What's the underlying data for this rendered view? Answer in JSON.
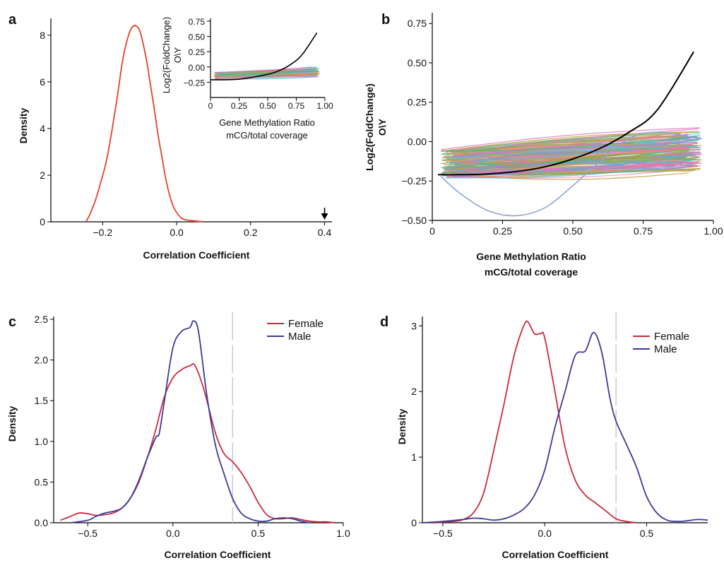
{
  "panels": {
    "a": {
      "letter": "a",
      "xlabel": "Correlation Coefficient",
      "ylabel": "Density",
      "inset_ylabel_line1": "Log2(FoldChange)",
      "inset_ylabel_line2": "O\\Y",
      "inset_xlabel_line1": "Gene Methylation Ratio",
      "inset_xlabel_line2": "mCG/total coverage"
    },
    "b": {
      "letter": "b",
      "xlabel_line1": "Gene Methylation Ratio",
      "xlabel_line2": "mCG/total coverage",
      "ylabel_line1": "Log2(FoldChange)",
      "ylabel_line2": "O\\Y"
    },
    "c": {
      "letter": "c",
      "xlabel": "Correlation Coefficient",
      "ylabel": "Density"
    },
    "d": {
      "letter": "d",
      "xlabel": "Correlation Coefficient",
      "ylabel": "Density"
    }
  },
  "chart_data": [
    {
      "panel": "a",
      "type": "line",
      "xlabel": "Correlation Coefficient",
      "ylabel": "Density",
      "xlim": [
        -0.34,
        0.42
      ],
      "ylim": [
        0,
        8.6
      ],
      "xticks": [
        -0.2,
        0.0,
        0.2,
        0.4
      ],
      "xtick_labels": [
        "−0.2",
        "0.0",
        "0.2",
        "0.4"
      ],
      "yticks": [
        0,
        2,
        4,
        6,
        8
      ],
      "ytick_labels": [
        "0",
        "2",
        "4",
        "6",
        "8"
      ],
      "color": "#e0432a",
      "arrow_at_x": 0.4,
      "series": [
        {
          "x": [
            -0.245,
            -0.235,
            -0.22,
            -0.205,
            -0.19,
            -0.175,
            -0.16,
            -0.145,
            -0.13,
            -0.12,
            -0.11,
            -0.1,
            -0.09,
            -0.08,
            -0.07,
            -0.06,
            -0.05,
            -0.04,
            -0.03,
            -0.02,
            -0.01,
            0.0,
            0.01,
            0.02,
            0.04,
            0.06,
            0.07
          ],
          "y": [
            0,
            0.3,
            0.9,
            1.7,
            2.6,
            3.9,
            5.4,
            7.0,
            8.0,
            8.35,
            8.4,
            8.2,
            7.6,
            6.8,
            5.8,
            4.8,
            3.7,
            2.8,
            1.9,
            1.2,
            0.7,
            0.4,
            0.2,
            0.1,
            0.05,
            0.02,
            0
          ]
        }
      ],
      "inset": {
        "type": "line",
        "xlim": [
          0,
          1.0
        ],
        "ylim": [
          -0.5,
          0.75
        ],
        "xticks": [
          0,
          0.25,
          0.5,
          0.75,
          1.0
        ],
        "xtick_labels": [
          "0",
          "0.25",
          "0.50",
          "0.75",
          "1.00"
        ],
        "yticks": [
          -0.25,
          0,
          0.25,
          0.5,
          0.75
        ],
        "ytick_labels": [
          "−0.25",
          "0.00",
          "0.25",
          "0.50",
          "0.75"
        ],
        "fit_curve": {
          "x": [
            0,
            0.25,
            0.5,
            0.6,
            0.7,
            0.8,
            0.93
          ],
          "y": [
            -0.21,
            -0.2,
            -0.12,
            -0.06,
            0.04,
            0.2,
            0.56
          ]
        }
      }
    },
    {
      "panel": "b",
      "type": "line",
      "xlabel": "Gene Methylation Ratio mCG/total coverage",
      "ylabel": "Log2(FoldChange) O\\Y",
      "xlim": [
        0,
        1.0
      ],
      "ylim": [
        -0.5,
        0.8
      ],
      "xticks": [
        0,
        0.25,
        0.5,
        0.75,
        1.0
      ],
      "xtick_labels": [
        "0",
        "0.25",
        "0.50",
        "0.75",
        "1.00"
      ],
      "yticks": [
        -0.5,
        -0.25,
        0,
        0.25,
        0.5,
        0.75
      ],
      "ytick_labels": [
        "−0.50",
        "−0.25",
        "0.00",
        "0.25",
        "0.50",
        "0.75"
      ],
      "fit_curve": {
        "color": "#000000",
        "x": [
          0.02,
          0.1,
          0.2,
          0.3,
          0.4,
          0.5,
          0.6,
          0.7,
          0.8,
          0.93
        ],
        "y": [
          -0.21,
          -0.21,
          -0.205,
          -0.19,
          -0.16,
          -0.11,
          -0.04,
          0.06,
          0.2,
          0.57
        ]
      },
      "outlier_curve": {
        "color": "#8fa4d8",
        "x": [
          0.03,
          0.1,
          0.2,
          0.3,
          0.4,
          0.5,
          0.6,
          0.7,
          0.8,
          0.95
        ],
        "y": [
          -0.22,
          -0.33,
          -0.44,
          -0.47,
          -0.42,
          -0.28,
          -0.12,
          0.02,
          0.06,
          0.02
        ]
      },
      "bundle_colors": [
        "#f56fae",
        "#f88cbe",
        "#3fc8c8",
        "#7db04a",
        "#9b8fe0",
        "#e8a050",
        "#c89a3a",
        "#5cb85c",
        "#e06db8",
        "#55b0e0"
      ]
    },
    {
      "panel": "c",
      "type": "line",
      "xlabel": "Correlation Coefficient",
      "ylabel": "Density",
      "xlim": [
        -0.7,
        1.0
      ],
      "ylim": [
        0,
        2.5
      ],
      "xticks": [
        -0.5,
        0.0,
        0.5,
        1.0
      ],
      "xtick_labels": [
        "−0.5",
        "0.0",
        "0.5",
        "1.0"
      ],
      "yticks": [
        0,
        0.5,
        1.0,
        1.5,
        2.0,
        2.5
      ],
      "ytick_labels": [
        "0.0",
        "0.5",
        "1.0",
        "1.5",
        "2.0",
        "2.5"
      ],
      "vline_x": 0.35,
      "legend": "top-right",
      "series": [
        {
          "name": "Female",
          "color": "#cc2a3e",
          "x": [
            -0.66,
            -0.6,
            -0.55,
            -0.5,
            -0.45,
            -0.4,
            -0.35,
            -0.3,
            -0.25,
            -0.2,
            -0.15,
            -0.1,
            -0.05,
            0.0,
            0.05,
            0.1,
            0.13,
            0.18,
            0.25,
            0.3,
            0.35,
            0.4,
            0.45,
            0.5,
            0.55,
            0.6,
            0.65,
            0.7,
            0.75,
            0.8,
            0.85,
            0.9,
            0.95
          ],
          "y": [
            0.03,
            0.08,
            0.12,
            0.11,
            0.09,
            0.1,
            0.12,
            0.18,
            0.3,
            0.5,
            0.8,
            1.15,
            1.55,
            1.78,
            1.88,
            1.93,
            1.93,
            1.65,
            1.1,
            0.85,
            0.75,
            0.62,
            0.45,
            0.25,
            0.1,
            0.05,
            0.05,
            0.06,
            0.04,
            0.02,
            0.01,
            0.01,
            0.0
          ]
        },
        {
          "name": "Male",
          "color": "#3b3b98",
          "x": [
            -0.6,
            -0.5,
            -0.45,
            -0.4,
            -0.35,
            -0.3,
            -0.25,
            -0.2,
            -0.15,
            -0.1,
            -0.08,
            -0.05,
            0.0,
            0.05,
            0.1,
            0.12,
            0.15,
            0.2,
            0.25,
            0.3,
            0.35,
            0.4,
            0.45,
            0.5,
            0.55,
            0.6,
            0.65,
            0.7,
            0.75,
            0.8
          ],
          "y": [
            0.0,
            0.03,
            0.08,
            0.12,
            0.14,
            0.18,
            0.3,
            0.52,
            0.8,
            1.05,
            1.1,
            1.5,
            2.15,
            2.35,
            2.4,
            2.48,
            2.35,
            1.55,
            0.95,
            0.6,
            0.3,
            0.12,
            0.05,
            0.02,
            0.02,
            0.05,
            0.06,
            0.05,
            0.02,
            0.0
          ]
        }
      ]
    },
    {
      "panel": "d",
      "type": "line",
      "xlabel": "Correlation Coefficient",
      "ylabel": "Density",
      "xlim": [
        -0.6,
        0.8
      ],
      "ylim": [
        0,
        3.1
      ],
      "xticks": [
        -0.5,
        0.0,
        0.5
      ],
      "xtick_labels": [
        "−0.5",
        "0.0",
        "0.5"
      ],
      "yticks": [
        0,
        1,
        2,
        3
      ],
      "ytick_labels": [
        "0",
        "1",
        "2",
        "3"
      ],
      "vline_x": 0.35,
      "legend": "top-right",
      "series": [
        {
          "name": "Female",
          "color": "#cc2a3e",
          "x": [
            -0.55,
            -0.45,
            -0.4,
            -0.35,
            -0.3,
            -0.25,
            -0.2,
            -0.15,
            -0.1,
            -0.08,
            -0.05,
            -0.02,
            0.0,
            0.05,
            0.1,
            0.15,
            0.2,
            0.25,
            0.3,
            0.35,
            0.4,
            0.45
          ],
          "y": [
            0.0,
            0.02,
            0.05,
            0.15,
            0.45,
            1.1,
            1.8,
            2.55,
            3.02,
            3.05,
            2.88,
            2.88,
            2.82,
            2.0,
            1.15,
            0.65,
            0.42,
            0.3,
            0.18,
            0.06,
            0.02,
            0.0
          ]
        },
        {
          "name": "Male",
          "color": "#3b3b98",
          "x": [
            -0.6,
            -0.5,
            -0.4,
            -0.35,
            -0.3,
            -0.25,
            -0.2,
            -0.15,
            -0.1,
            -0.05,
            0.0,
            0.05,
            0.1,
            0.15,
            0.2,
            0.24,
            0.28,
            0.32,
            0.35,
            0.4,
            0.45,
            0.5,
            0.55,
            0.6,
            0.65,
            0.7,
            0.75,
            0.8
          ],
          "y": [
            0.0,
            0.02,
            0.05,
            0.07,
            0.06,
            0.04,
            0.06,
            0.12,
            0.22,
            0.42,
            0.8,
            1.45,
            2.0,
            2.55,
            2.62,
            2.9,
            2.6,
            1.9,
            1.55,
            1.2,
            0.85,
            0.4,
            0.15,
            0.04,
            0.02,
            0.03,
            0.05,
            0.04
          ]
        }
      ]
    }
  ]
}
